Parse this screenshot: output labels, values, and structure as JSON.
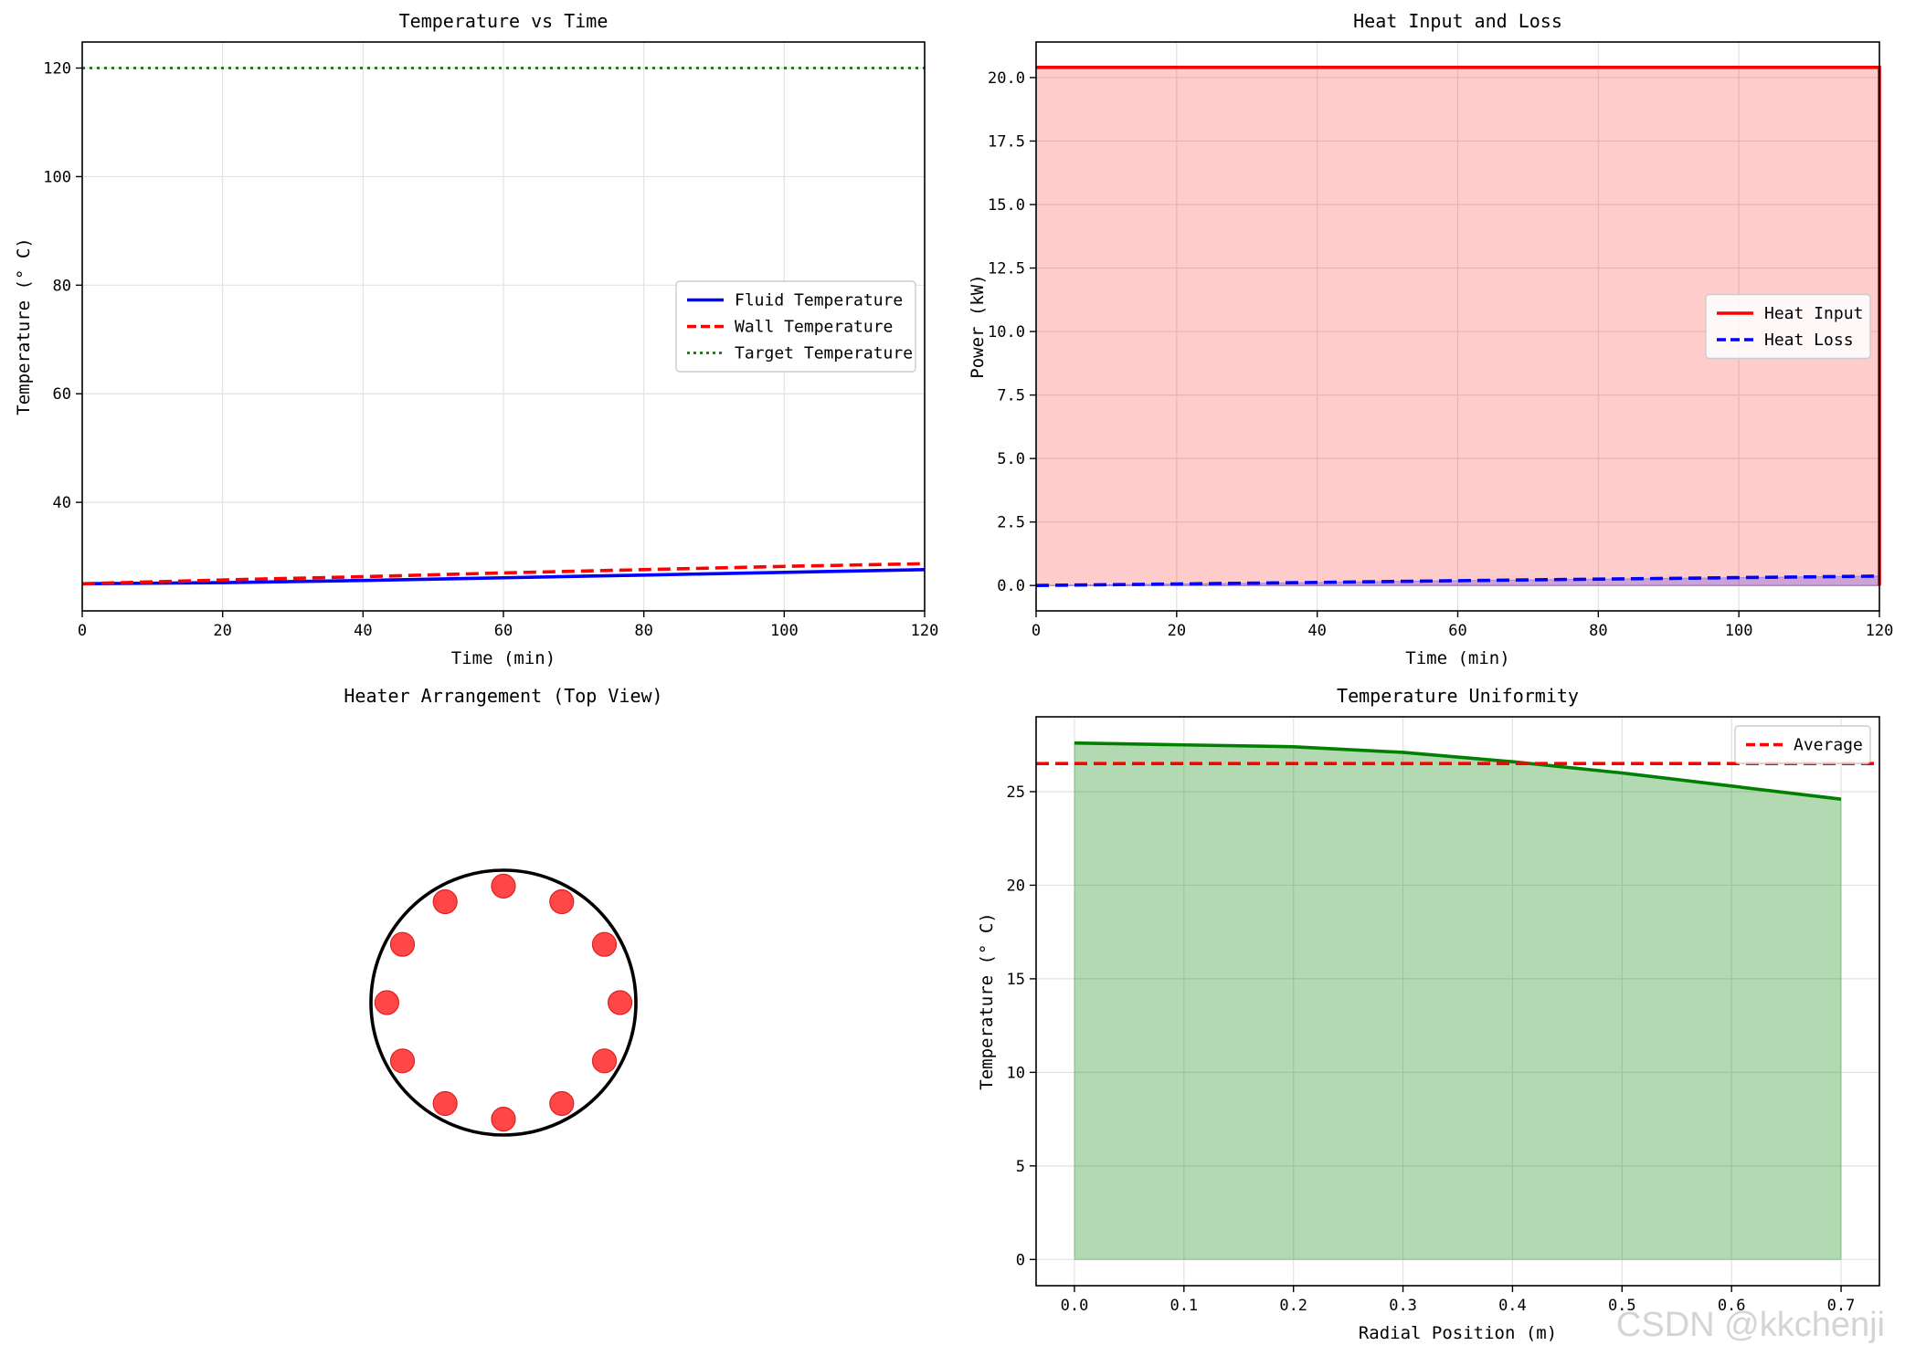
{
  "chart_data": [
    {
      "type": "line",
      "title": "Temperature vs Time",
      "xlabel": "Time (min)",
      "ylabel": "Temperature (° C)",
      "xlim": [
        0,
        120
      ],
      "ylim": [
        20,
        124.8
      ],
      "xticks": [
        0,
        20,
        40,
        60,
        80,
        100,
        120
      ],
      "yticks": [
        40,
        60,
        80,
        100,
        120
      ],
      "grid": true,
      "legend_position": "center-right",
      "series": [
        {
          "name": "Fluid Temperature",
          "color": "#0000ff",
          "style": "solid",
          "x": [
            0,
            20,
            40,
            60,
            80,
            100,
            120
          ],
          "y": [
            25.0,
            25.2,
            25.6,
            26.1,
            26.6,
            27.1,
            27.6
          ]
        },
        {
          "name": "Wall Temperature",
          "color": "#ff0000",
          "style": "dashed",
          "x": [
            0,
            20,
            40,
            60,
            80,
            100,
            120
          ],
          "y": [
            25.0,
            25.7,
            26.3,
            27.0,
            27.6,
            28.2,
            28.7
          ]
        },
        {
          "name": "Target Temperature",
          "color": "#008000",
          "style": "dotted",
          "x": [
            0,
            120
          ],
          "y": [
            120,
            120
          ]
        }
      ]
    },
    {
      "type": "area",
      "title": "Heat Input and Loss",
      "xlabel": "Time (min)",
      "ylabel": "Power (kW)",
      "xlim": [
        0,
        120
      ],
      "ylim": [
        -1.0,
        21.4
      ],
      "xticks": [
        0,
        20,
        40,
        60,
        80,
        100,
        120
      ],
      "yticks": [
        0.0,
        2.5,
        5.0,
        7.5,
        10.0,
        12.5,
        15.0,
        17.5,
        20.0
      ],
      "grid": true,
      "legend_position": "center-right",
      "series": [
        {
          "name": "Heat Input",
          "color": "#ff0000",
          "style": "solid",
          "fill": "#ff0000",
          "x": [
            0,
            120,
            120
          ],
          "y": [
            20.4,
            20.4,
            0
          ]
        },
        {
          "name": "Heat Loss",
          "color": "#0000ff",
          "style": "dashed",
          "fill": "#0000ff",
          "x": [
            0,
            20,
            40,
            60,
            80,
            100,
            120
          ],
          "y": [
            0.0,
            0.06,
            0.12,
            0.19,
            0.25,
            0.31,
            0.37
          ]
        }
      ]
    },
    {
      "type": "scatter",
      "title": "Heater Arrangement (Top View)",
      "axes": "off",
      "vessel_radius": 1.0,
      "heater_count": 12,
      "heater_ring_radius": 0.88,
      "heater_color": "#ff3333",
      "vessel_color": "#000000"
    },
    {
      "type": "area",
      "title": "Temperature Uniformity",
      "xlabel": "Radial Position (m)",
      "ylabel": "Temperature (° C)",
      "xlim": [
        -0.035,
        0.735
      ],
      "ylim": [
        -1.4,
        29.0
      ],
      "xticks": [
        0.0,
        0.1,
        0.2,
        0.3,
        0.4,
        0.5,
        0.6,
        0.7
      ],
      "xtick_labels": [
        "0.0",
        "0.1",
        "0.2",
        "0.3",
        "0.4",
        "0.5",
        "0.6",
        "0.7"
      ],
      "yticks": [
        0,
        5,
        10,
        15,
        20,
        25
      ],
      "grid": true,
      "legend_position": "upper-right",
      "series": [
        {
          "name": "",
          "color": "#008000",
          "style": "solid",
          "fill": "#008000",
          "x": [
            0.0,
            0.1,
            0.2,
            0.3,
            0.4,
            0.5,
            0.6,
            0.7
          ],
          "y": [
            27.6,
            27.5,
            27.4,
            27.1,
            26.6,
            26.0,
            25.3,
            24.6
          ]
        },
        {
          "name": "Average",
          "color": "#ff0000",
          "style": "dashed",
          "x": [
            -0.035,
            0.735
          ],
          "y": [
            26.5,
            26.5
          ]
        }
      ]
    }
  ],
  "watermark": "CSDN @kkchenji"
}
